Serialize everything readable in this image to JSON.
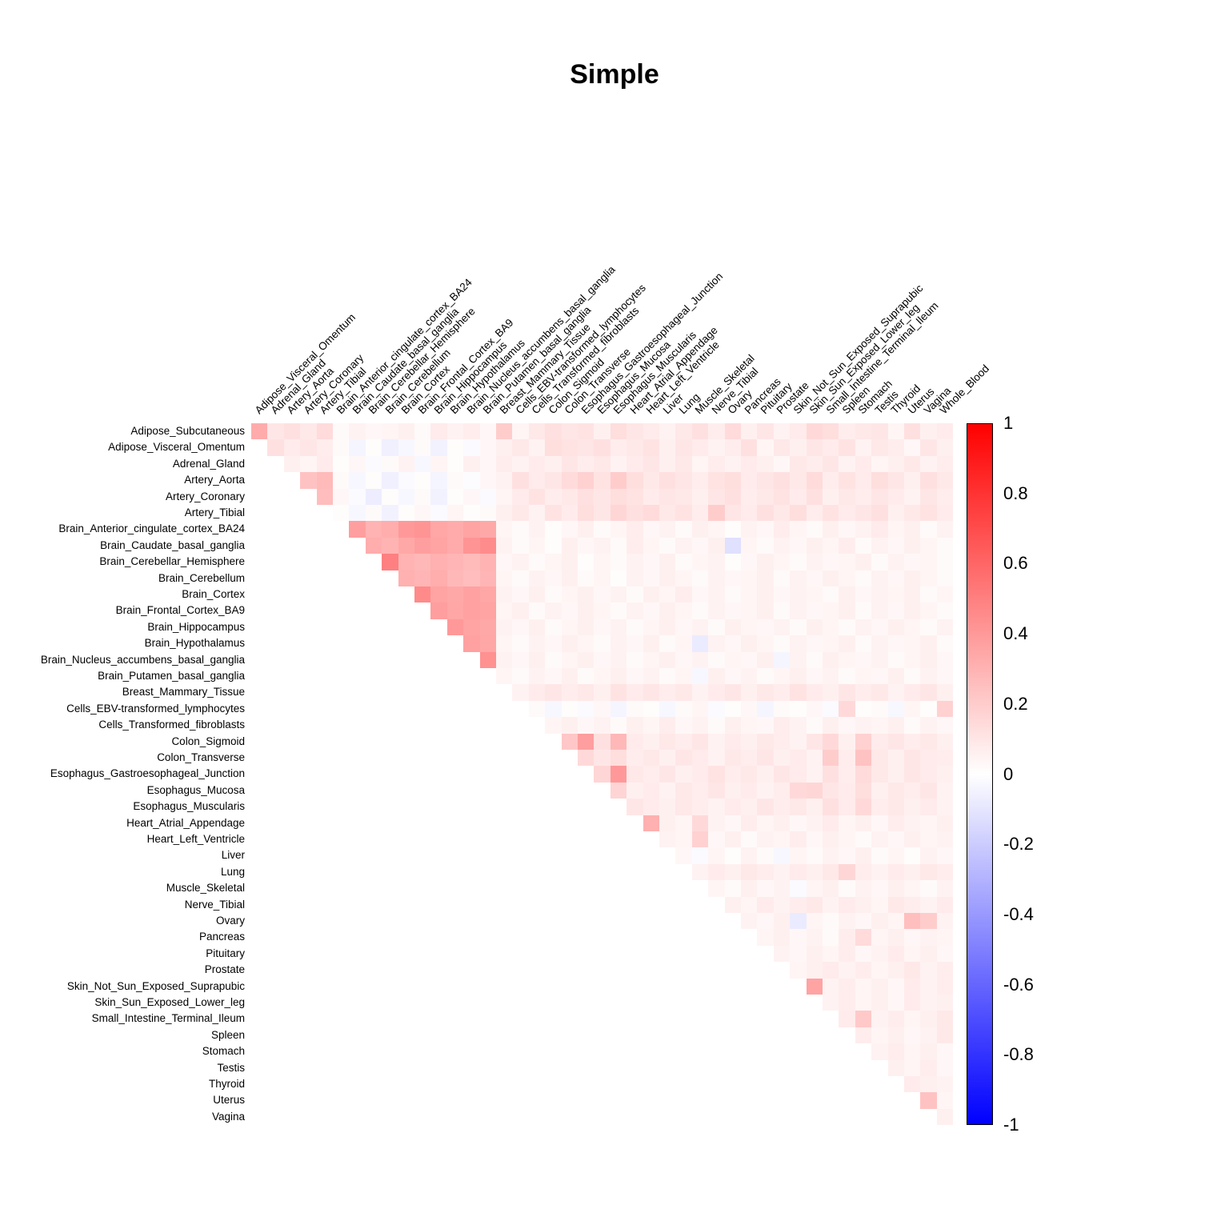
{
  "title": "Simple",
  "chart_data": {
    "type": "heatmap",
    "subtype": "correlation-upper-triangle",
    "title": "Simple",
    "grid": false,
    "legend_position": "right",
    "row_labels": [
      "Adipose_Subcutaneous",
      "Adipose_Visceral_Omentum",
      "Adrenal_Gland",
      "Artery_Aorta",
      "Artery_Coronary",
      "Artery_Tibial",
      "Brain_Anterior_cingulate_cortex_BA24",
      "Brain_Caudate_basal_ganglia",
      "Brain_Cerebellar_Hemisphere",
      "Brain_Cerebellum",
      "Brain_Cortex",
      "Brain_Frontal_Cortex_BA9",
      "Brain_Hippocampus",
      "Brain_Hypothalamus",
      "Brain_Nucleus_accumbens_basal_ganglia",
      "Brain_Putamen_basal_ganglia",
      "Breast_Mammary_Tissue",
      "Cells_EBV-transformed_lymphocytes",
      "Cells_Transformed_fibroblasts",
      "Colon_Sigmoid",
      "Colon_Transverse",
      "Esophagus_Gastroesophageal_Junction",
      "Esophagus_Mucosa",
      "Esophagus_Muscularis",
      "Heart_Atrial_Appendage",
      "Heart_Left_Ventricle",
      "Liver",
      "Lung",
      "Muscle_Skeletal",
      "Nerve_Tibial",
      "Ovary",
      "Pancreas",
      "Pituitary",
      "Prostate",
      "Skin_Not_Sun_Exposed_Suprapubic",
      "Skin_Sun_Exposed_Lower_leg",
      "Small_Intestine_Terminal_Ileum",
      "Spleen",
      "Stomach",
      "Testis",
      "Thyroid",
      "Uterus",
      "Vagina"
    ],
    "col_labels": [
      "Adipose_Visceral_Omentum",
      "Adrenal_Gland",
      "Artery_Aorta",
      "Artery_Coronary",
      "Artery_Tibial",
      "Brain_Anterior_cingulate_cortex_BA24",
      "Brain_Caudate_basal_ganglia",
      "Brain_Cerebellar_Hemisphere",
      "Brain_Cerebellum",
      "Brain_Cortex",
      "Brain_Frontal_Cortex_BA9",
      "Brain_Hippocampus",
      "Brain_Hypothalamus",
      "Brain_Nucleus_accumbens_basal_ganglia",
      "Brain_Putamen_basal_ganglia",
      "Breast_Mammary_Tissue",
      "Cells_EBV-transformed_lymphocytes",
      "Cells_Transformed_fibroblasts",
      "Colon_Sigmoid",
      "Colon_Transverse",
      "Esophagus_Gastroesophageal_Junction",
      "Esophagus_Mucosa",
      "Esophagus_Muscularis",
      "Heart_Atrial_Appendage",
      "Heart_Left_Ventricle",
      "Liver",
      "Lung",
      "Muscle_Skeletal",
      "Nerve_Tibial",
      "Ovary",
      "Pancreas",
      "Pituitary",
      "Prostate",
      "Skin_Not_Sun_Exposed_Suprapubic",
      "Skin_Sun_Exposed_Lower_leg",
      "Small_Intestine_Terminal_Ileum",
      "Spleen",
      "Stomach",
      "Testis",
      "Thyroid",
      "Uterus",
      "Vagina",
      "Whole_Blood"
    ],
    "values": [
      [
        0.33,
        0.1,
        0.12,
        0.09,
        0.14,
        0.02,
        0.05,
        0.03,
        0.04,
        0.06,
        0.02,
        0.08,
        0.05,
        0.07,
        0.03,
        0.2,
        0.04,
        0.09,
        0.12,
        0.1,
        0.11,
        0.06,
        0.13,
        0.1,
        0.08,
        0.05,
        0.09,
        0.12,
        0.07,
        0.14,
        0.06,
        0.1,
        0.05,
        0.08,
        0.15,
        0.13,
        0.07,
        0.09,
        0.1,
        0.04,
        0.12,
        0.06,
        0.08
      ],
      [
        0.12,
        0.08,
        0.1,
        0.07,
        0.02,
        -0.04,
        0.01,
        -0.06,
        -0.03,
        0.02,
        -0.05,
        0.01,
        -0.02,
        0.03,
        0.06,
        0.09,
        0.05,
        0.13,
        0.11,
        0.1,
        0.12,
        0.07,
        0.09,
        0.11,
        0.06,
        0.1,
        0.08,
        0.05,
        0.07,
        0.12,
        0.04,
        0.09,
        0.06,
        0.1,
        0.08,
        0.11,
        0.05,
        0.09,
        0.07,
        0.03,
        0.1,
        0.06
      ],
      [
        0.06,
        0.04,
        0.08,
        0.01,
        0.03,
        -0.02,
        0.02,
        0.05,
        -0.03,
        0.04,
        0.01,
        0.06,
        0.03,
        0.07,
        0.05,
        0.08,
        0.06,
        0.1,
        0.07,
        0.09,
        0.05,
        0.08,
        0.1,
        0.06,
        0.09,
        0.04,
        0.07,
        0.05,
        0.08,
        0.06,
        0.03,
        0.09,
        0.07,
        0.1,
        0.05,
        0.08,
        0.04,
        0.06,
        0.09,
        0.05,
        0.07
      ],
      [
        0.24,
        0.27,
        0.02,
        -0.03,
        0.01,
        -0.06,
        -0.02,
        0.01,
        -0.04,
        0.02,
        -0.01,
        0.03,
        0.05,
        0.12,
        0.08,
        0.1,
        0.14,
        0.18,
        0.11,
        0.2,
        0.13,
        0.09,
        0.12,
        0.1,
        0.07,
        0.11,
        0.13,
        0.08,
        0.1,
        0.12,
        0.09,
        0.14,
        0.07,
        0.11,
        0.08,
        0.13,
        0.1,
        0.06,
        0.12,
        0.09
      ],
      [
        0.26,
        0.03,
        -0.02,
        -0.07,
        0.01,
        -0.03,
        0.02,
        -0.05,
        0.01,
        0.03,
        -0.02,
        0.04,
        0.08,
        0.11,
        0.07,
        0.09,
        0.12,
        0.1,
        0.13,
        0.11,
        0.08,
        0.1,
        0.09,
        0.06,
        0.1,
        0.12,
        0.07,
        0.09,
        0.11,
        0.08,
        0.12,
        0.06,
        0.09,
        0.07,
        0.1,
        0.08,
        0.05,
        0.1,
        0.07
      ],
      [
        0.01,
        -0.03,
        0.02,
        -0.05,
        0.01,
        0.03,
        -0.02,
        0.04,
        0.01,
        0.02,
        0.06,
        0.09,
        0.05,
        0.11,
        0.08,
        0.13,
        0.1,
        0.16,
        0.12,
        0.14,
        0.09,
        0.11,
        0.07,
        0.2,
        0.1,
        0.08,
        0.12,
        0.09,
        0.13,
        0.07,
        0.11,
        0.08,
        0.1,
        0.12,
        0.06,
        0.09,
        0.11,
        0.08
      ],
      [
        0.38,
        0.3,
        0.32,
        0.4,
        0.42,
        0.35,
        0.33,
        0.36,
        0.34,
        0.04,
        0.02,
        0.05,
        0.01,
        0.03,
        0.06,
        0.02,
        0.04,
        0.07,
        0.03,
        0.05,
        0.02,
        0.06,
        0.04,
        0.01,
        0.05,
        0.03,
        0.07,
        0.04,
        0.02,
        0.06,
        0.03,
        0.05,
        0.08,
        0.04,
        0.06,
        0.02,
        0.05
      ],
      [
        0.32,
        0.3,
        0.34,
        0.38,
        0.36,
        0.33,
        0.42,
        0.45,
        0.05,
        0.02,
        0.04,
        0.01,
        0.06,
        0.03,
        0.05,
        0.02,
        0.07,
        0.04,
        0.02,
        0.05,
        0.03,
        0.06,
        -0.12,
        0.04,
        0.02,
        0.05,
        0.03,
        0.06,
        0.04,
        0.07,
        0.02,
        0.05,
        0.03,
        0.06,
        0.04,
        0.02
      ],
      [
        0.5,
        0.3,
        0.28,
        0.31,
        0.29,
        0.27,
        0.3,
        0.03,
        0.05,
        0.02,
        0.04,
        0.06,
        0.01,
        0.04,
        0.02,
        0.05,
        0.03,
        0.06,
        0.02,
        0.04,
        0.05,
        0.01,
        0.03,
        0.06,
        0.04,
        0.02,
        0.05,
        0.03,
        0.04,
        0.06,
        0.02,
        0.05,
        0.03,
        0.04,
        0.02
      ],
      [
        0.31,
        0.29,
        0.32,
        0.28,
        0.26,
        0.29,
        0.04,
        0.02,
        0.05,
        0.03,
        0.06,
        0.02,
        0.04,
        0.01,
        0.05,
        0.03,
        0.06,
        0.04,
        0.02,
        0.05,
        0.03,
        0.04,
        0.06,
        0.02,
        0.05,
        0.03,
        0.06,
        0.04,
        0.02,
        0.05,
        0.03,
        0.06,
        0.04,
        0.02
      ],
      [
        0.46,
        0.36,
        0.34,
        0.37,
        0.35,
        0.05,
        0.03,
        0.06,
        0.02,
        0.04,
        0.06,
        0.03,
        0.05,
        0.02,
        0.06,
        0.04,
        0.07,
        0.03,
        0.05,
        0.02,
        0.04,
        0.06,
        0.03,
        0.05,
        0.04,
        0.02,
        0.06,
        0.03,
        0.05,
        0.04,
        0.06,
        0.02,
        0.04
      ],
      [
        0.38,
        0.35,
        0.37,
        0.36,
        0.04,
        0.06,
        0.02,
        0.05,
        0.03,
        0.06,
        0.04,
        0.02,
        0.05,
        0.03,
        0.06,
        0.04,
        0.02,
        0.05,
        0.03,
        0.04,
        0.06,
        0.02,
        0.05,
        0.03,
        0.04,
        0.06,
        0.02,
        0.05,
        0.03,
        0.06,
        0.04,
        0.02
      ],
      [
        0.4,
        0.36,
        0.34,
        0.05,
        0.03,
        0.06,
        0.02,
        0.04,
        0.06,
        0.03,
        0.05,
        0.02,
        0.04,
        0.06,
        0.03,
        0.05,
        0.02,
        0.06,
        0.04,
        0.03,
        0.05,
        0.02,
        0.06,
        0.04,
        0.02,
        0.05,
        0.03,
        0.06,
        0.04,
        0.02,
        0.05
      ],
      [
        0.37,
        0.35,
        0.04,
        0.02,
        0.05,
        0.03,
        0.06,
        0.04,
        0.02,
        0.05,
        0.03,
        0.06,
        0.02,
        0.04,
        -0.08,
        0.05,
        0.03,
        0.06,
        0.04,
        0.02,
        0.05,
        0.03,
        0.04,
        0.06,
        0.02,
        0.05,
        0.03,
        0.04,
        0.06,
        0.02
      ],
      [
        0.43,
        0.05,
        0.03,
        0.06,
        0.02,
        0.04,
        0.06,
        0.03,
        0.05,
        0.02,
        0.04,
        0.06,
        0.03,
        0.05,
        0.02,
        0.04,
        0.03,
        0.06,
        -0.04,
        0.05,
        0.02,
        0.06,
        0.04,
        0.03,
        0.05,
        0.02,
        0.04,
        0.06,
        0.03
      ],
      [
        0.04,
        0.02,
        0.05,
        0.03,
        0.06,
        0.02,
        0.04,
        0.06,
        0.03,
        0.05,
        0.02,
        0.04,
        -0.03,
        0.06,
        0.03,
        0.05,
        0.02,
        0.04,
        0.06,
        0.03,
        0.05,
        0.02,
        0.04,
        0.03,
        0.06,
        0.02,
        0.05,
        0.03
      ],
      [
        0.05,
        0.08,
        0.1,
        0.07,
        0.09,
        0.06,
        0.11,
        0.08,
        0.1,
        0.07,
        0.09,
        0.05,
        0.08,
        0.1,
        0.06,
        0.09,
        0.07,
        0.11,
        0.08,
        0.06,
        0.1,
        0.07,
        0.09,
        0.05,
        0.08,
        0.1,
        0.06
      ],
      [
        0.02,
        -0.03,
        0.01,
        -0.02,
        0.03,
        -0.04,
        0.02,
        0.01,
        -0.03,
        0.02,
        0.04,
        -0.02,
        0.01,
        0.03,
        -0.04,
        0.02,
        0.01,
        0.03,
        -0.02,
        0.15,
        0.01,
        0.02,
        -0.03,
        0.04,
        0.01,
        0.18
      ],
      [
        0.04,
        0.06,
        0.03,
        0.05,
        0.02,
        0.06,
        0.04,
        0.07,
        0.03,
        0.05,
        0.02,
        0.06,
        0.04,
        0.03,
        0.07,
        0.05,
        0.02,
        0.06,
        0.03,
        0.05,
        0.04,
        0.06,
        0.02,
        0.05,
        0.03
      ],
      [
        0.22,
        0.38,
        0.12,
        0.28,
        0.08,
        0.06,
        0.09,
        0.07,
        0.1,
        0.05,
        0.08,
        0.06,
        0.09,
        0.07,
        0.05,
        0.1,
        0.15,
        0.06,
        0.18,
        0.08,
        0.1,
        0.07,
        0.09,
        0.06
      ],
      [
        0.15,
        0.1,
        0.13,
        0.07,
        0.09,
        0.06,
        0.1,
        0.08,
        0.05,
        0.09,
        0.07,
        0.1,
        0.06,
        0.08,
        0.05,
        0.2,
        0.07,
        0.24,
        0.09,
        0.06,
        0.1,
        0.08,
        0.07
      ],
      [
        0.16,
        0.4,
        0.09,
        0.07,
        0.1,
        0.06,
        0.08,
        0.11,
        0.07,
        0.09,
        0.06,
        0.1,
        0.08,
        0.05,
        0.12,
        0.07,
        0.14,
        0.09,
        0.06,
        0.1,
        0.08,
        0.06
      ],
      [
        0.17,
        0.06,
        0.08,
        0.05,
        0.09,
        0.07,
        0.1,
        0.06,
        0.08,
        0.05,
        0.07,
        0.15,
        0.16,
        0.1,
        0.08,
        0.13,
        0.06,
        0.09,
        0.07,
        0.1,
        0.05
      ],
      [
        0.1,
        0.08,
        0.06,
        0.09,
        0.07,
        0.05,
        0.08,
        0.06,
        0.1,
        0.07,
        0.09,
        0.06,
        0.12,
        0.08,
        0.15,
        0.07,
        0.09,
        0.06,
        0.08,
        0.05
      ],
      [
        0.31,
        0.06,
        0.04,
        0.15,
        0.05,
        0.03,
        0.07,
        0.04,
        0.06,
        0.03,
        0.05,
        0.08,
        0.04,
        0.06,
        0.03,
        0.07,
        0.05,
        0.04,
        0.06
      ],
      [
        0.05,
        0.04,
        0.18,
        0.03,
        0.06,
        0.02,
        0.05,
        0.04,
        0.07,
        0.03,
        0.06,
        0.04,
        0.02,
        0.05,
        0.03,
        0.06,
        0.04,
        0.05
      ],
      [
        0.03,
        -0.02,
        0.04,
        0.01,
        0.05,
        0.02,
        -0.03,
        0.04,
        0.02,
        0.05,
        0.03,
        0.06,
        0.02,
        0.04,
        0.01,
        0.05,
        0.03
      ],
      [
        0.05,
        0.08,
        0.06,
        0.09,
        0.07,
        0.05,
        0.08,
        0.06,
        0.09,
        0.16,
        0.07,
        0.05,
        0.08,
        0.06,
        0.09,
        0.07
      ],
      [
        0.04,
        0.02,
        0.06,
        0.03,
        0.05,
        -0.02,
        0.04,
        0.06,
        0.02,
        0.05,
        0.03,
        0.06,
        0.04,
        0.02,
        0.05
      ],
      [
        0.06,
        0.04,
        0.08,
        0.05,
        0.07,
        0.09,
        0.05,
        0.08,
        0.06,
        0.04,
        0.09,
        0.07,
        0.05,
        0.08
      ],
      [
        0.05,
        0.03,
        0.06,
        -0.08,
        0.04,
        0.02,
        0.05,
        0.03,
        0.06,
        0.04,
        0.25,
        0.2,
        0.05
      ],
      [
        0.04,
        0.06,
        0.03,
        0.05,
        0.02,
        0.07,
        0.14,
        0.04,
        0.06,
        0.03,
        0.05,
        0.04
      ],
      [
        0.05,
        0.03,
        0.06,
        0.04,
        0.07,
        0.03,
        0.05,
        0.08,
        0.04,
        0.06,
        0.03
      ],
      [
        0.04,
        0.06,
        0.08,
        0.05,
        0.07,
        0.04,
        0.06,
        0.09,
        0.05,
        0.07
      ],
      [
        0.36,
        0.05,
        0.07,
        0.04,
        0.06,
        0.03,
        0.08,
        0.05,
        0.07
      ],
      [
        0.05,
        0.07,
        0.04,
        0.06,
        0.03,
        0.08,
        0.05,
        0.06
      ],
      [
        0.08,
        0.21,
        0.05,
        0.07,
        0.04,
        0.06,
        0.09
      ],
      [
        0.07,
        0.04,
        0.06,
        0.03,
        0.05,
        0.09
      ],
      [
        0.05,
        0.07,
        0.04,
        0.06,
        0.03
      ],
      [
        0.06,
        0.04,
        0.07,
        0.03
      ],
      [
        0.08,
        0.06,
        0.05
      ],
      [
        0.24,
        0.04
      ],
      [
        0.06
      ]
    ],
    "colorbar": {
      "min": -1,
      "max": 1,
      "ticks": [
        "1",
        "0.8",
        "0.6",
        "0.4",
        "0.2",
        "0",
        "-0.2",
        "-0.4",
        "-0.6",
        "-0.8",
        "-1"
      ],
      "color_positive": "#FF0000",
      "color_zero": "#FFFFFF",
      "color_negative": "#0000FF",
      "border_color": "#000000"
    }
  }
}
